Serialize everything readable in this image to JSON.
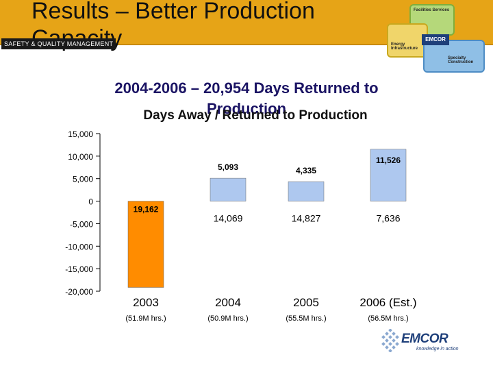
{
  "slide": {
    "title_line1": "Results – Better Production",
    "title_line2": "Capacity",
    "tag": "SAFETY & QUALITY MANAGEMENT",
    "subtitle_line1": "2004-2006 – 20,954 Days Returned to",
    "subtitle_line2": "Production"
  },
  "header_logo": {
    "labels": [
      "Facilities Services",
      "Energy Infrastructure",
      "Specialty Construction",
      "EMCOR"
    ],
    "colors": [
      "#b5d87a",
      "#f0d56a",
      "#8fbfe6",
      "#1e3f7a"
    ]
  },
  "brand": {
    "name": "EMCOR",
    "tagline": "knowledge in action"
  },
  "chart_data": {
    "type": "bar",
    "title": "Days Away / Returned to Production",
    "categories": [
      "2003",
      "2004",
      "2005",
      "2006 (Est.)"
    ],
    "category_sublabels": [
      "(51.9M hrs.)",
      "(50.9M hrs.)",
      "(55.5M hrs.)",
      "(56.5M hrs.)"
    ],
    "values": [
      -19162,
      5093,
      4335,
      11526
    ],
    "value_labels": [
      "19,162",
      "5,093",
      "4,335",
      "11,526"
    ],
    "days_away_labels": [
      "",
      "14,069",
      "14,827",
      "7,636"
    ],
    "bar_colors": [
      "#ff8c00",
      "#aec8ef",
      "#aec8ef",
      "#aec8ef"
    ],
    "ylim": [
      -20000,
      15000
    ],
    "yticks": [
      15000,
      10000,
      5000,
      0,
      -5000,
      -10000,
      -15000,
      -20000
    ],
    "ytick_labels": [
      "15,000",
      "10,000",
      "5,000",
      "0",
      "-5,000",
      "-10,000",
      "-15,000",
      "-20,000"
    ],
    "grid": false,
    "legend": "none"
  }
}
